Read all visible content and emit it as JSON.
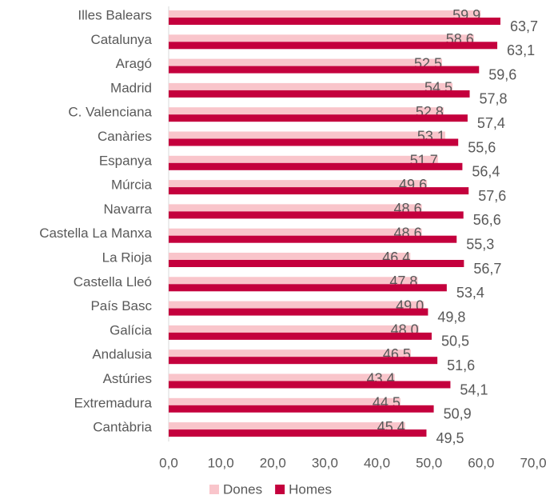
{
  "chart_data": {
    "type": "hbar",
    "categories": [
      "Illes Balears",
      "Catalunya",
      "Aragó",
      "Madrid",
      "C. Valenciana",
      "Canàries",
      "Espanya",
      "Múrcia",
      "Navarra",
      "Castella La Manxa",
      "La Rioja",
      "Castella Lleó",
      "País Basc",
      "Galícia",
      "Andalusia",
      "Astúries",
      "Extremadura",
      "Cantàbria"
    ],
    "series": [
      {
        "name": "Dones",
        "color": "#f9c5cb",
        "values": [
          59.9,
          58.6,
          52.5,
          54.5,
          52.8,
          53.1,
          51.7,
          49.6,
          48.6,
          48.6,
          46.4,
          47.8,
          49.0,
          48.0,
          46.5,
          43.4,
          44.5,
          45.4
        ],
        "value_labels": [
          "59,9",
          "58,6",
          "52,5",
          "54,5",
          "52,8",
          "53,1",
          "51,7",
          "49,6",
          "48,6",
          "48,6",
          "46,4",
          "47,8",
          "49,0",
          "48,0",
          "46,5",
          "43,4",
          "44,5",
          "45,4"
        ]
      },
      {
        "name": "Homes",
        "color": "#c4003d",
        "values": [
          63.7,
          63.1,
          59.6,
          57.8,
          57.4,
          55.6,
          56.4,
          57.6,
          56.6,
          55.3,
          56.7,
          53.4,
          49.8,
          50.5,
          51.6,
          54.1,
          50.9,
          49.5
        ],
        "value_labels": [
          "63,7",
          "63,1",
          "59,6",
          "57,8",
          "57,4",
          "55,6",
          "56,4",
          "57,6",
          "56,6",
          "55,3",
          "56,7",
          "53,4",
          "49,8",
          "50,5",
          "51,6",
          "54,1",
          "50,9",
          "49,5"
        ]
      }
    ],
    "xlim": [
      0,
      70
    ],
    "xticks": [
      {
        "value": 0,
        "label": "0,0"
      },
      {
        "value": 10,
        "label": "10,0"
      },
      {
        "value": 20,
        "label": "20,0"
      },
      {
        "value": 30,
        "label": "30,0"
      },
      {
        "value": 40,
        "label": "40,0"
      },
      {
        "value": 50,
        "label": "50,0"
      },
      {
        "value": 60,
        "label": "60,0"
      },
      {
        "value": 70,
        "label": "70,0"
      }
    ],
    "legend": "bottom",
    "grid": false
  }
}
